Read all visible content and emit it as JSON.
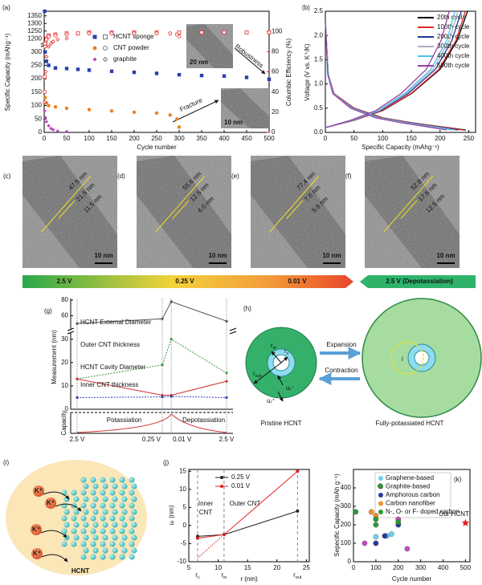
{
  "chart_data": [
    {
      "type": "scatter",
      "panel": "(a)",
      "x_label": "Cycle number",
      "y_label": "Specific Capacity (mAhg⁻¹)",
      "y2_label": "Columbic Efficiency (%)",
      "xlim": [
        0,
        500
      ],
      "xticks": [
        0,
        50,
        100,
        150,
        200,
        250,
        300,
        350,
        400,
        450,
        500
      ],
      "ylim": [
        0,
        1380
      ],
      "ybreak": [
        320,
        1180
      ],
      "yticks": [
        0,
        50,
        100,
        150,
        200,
        250,
        300,
        1200,
        1250,
        1300,
        1350
      ],
      "y2lim": [
        0,
        120
      ],
      "y2ticks": [
        0,
        20,
        40,
        60,
        80,
        100
      ],
      "y2_color": "#e8262a",
      "efficiency_color": "#e8262a",
      "series": [
        {
          "name": "HCNT sponge",
          "color": "#2b3fae",
          "marker": "square",
          "x": [
            1,
            2,
            5,
            10,
            25,
            50,
            75,
            100,
            150,
            200,
            250,
            300,
            350,
            400,
            450,
            500
          ],
          "values": [
            1380,
            300,
            265,
            250,
            240,
            238,
            235,
            232,
            228,
            224,
            220,
            215,
            212,
            210,
            205,
            198
          ],
          "efficiency": [
            55,
            88,
            93,
            96,
            97,
            98,
            98,
            99,
            99,
            99,
            99,
            99,
            99,
            99,
            99,
            99
          ]
        },
        {
          "name": "CNT powder",
          "color": "#f08020",
          "marker": "circle",
          "x": [
            1,
            2,
            5,
            10,
            25,
            50,
            100,
            150,
            200,
            250,
            280,
            295,
            300
          ],
          "values": [
            150,
            130,
            110,
            100,
            95,
            90,
            85,
            80,
            75,
            72,
            65,
            50,
            20
          ],
          "efficiency": [
            40,
            85,
            92,
            95,
            96,
            97,
            98,
            98,
            98,
            98,
            98,
            97,
            95
          ]
        },
        {
          "name": "graphite",
          "color": "#c040c0",
          "marker": "diamond",
          "x": [
            1,
            3,
            5,
            10,
            15,
            20,
            30,
            50
          ],
          "values": [
            80,
            55,
            40,
            25,
            15,
            10,
            5,
            3
          ],
          "efficiency": [
            30,
            60,
            75,
            85,
            88,
            90,
            92,
            93
          ]
        }
      ],
      "annotations": [
        "Robustness",
        "Fracture"
      ],
      "inset_scales": [
        "20 nm",
        "10 nm"
      ]
    },
    {
      "type": "line",
      "panel": "(b)",
      "x_label": "Specific Capacity (mAhg⁻¹)",
      "y_label": "Voltage (V vs. K⁺/K)",
      "xlim": [
        0,
        262
      ],
      "xticks": [
        0,
        50,
        100,
        150,
        200,
        250
      ],
      "ylim": [
        0,
        2.5
      ],
      "yticks": [
        {
          "value": 0,
          "label": "0.0"
        },
        {
          "value": 0.5,
          "label": "0.5"
        },
        {
          "value": 1,
          "label": "1.0"
        },
        {
          "value": 1.5,
          "label": "1.5"
        },
        {
          "value": 2,
          "label": "2.0"
        },
        {
          "value": 2.5,
          "label": "2.5"
        }
      ],
      "series": [
        {
          "name": "20th cycle",
          "color": "#000000",
          "discharge_x": [
            0,
            5,
            15,
            50,
            100,
            150,
            200,
            245
          ],
          "discharge": [
            2.3,
            1.2,
            0.8,
            0.5,
            0.3,
            0.2,
            0.12,
            0.05
          ],
          "charge_x": [
            0,
            50,
            100,
            150,
            200,
            230,
            248
          ],
          "charge": [
            0.1,
            0.25,
            0.45,
            0.8,
            1.3,
            1.9,
            2.5
          ]
        },
        {
          "name": "100th cycle",
          "color": "#e8262a",
          "discharge_x": [
            0,
            5,
            15,
            50,
            99,
            149,
            198,
            240
          ],
          "discharge": [
            2.3,
            1.2,
            0.8,
            0.5,
            0.3,
            0.2,
            0.12,
            0.05
          ],
          "charge_x": [
            0,
            50,
            99,
            149,
            198,
            228,
            244
          ],
          "charge": [
            0.1,
            0.25,
            0.45,
            0.8,
            1.3,
            1.9,
            2.5
          ]
        },
        {
          "name": "200th cycle",
          "color": "#1f3a93",
          "discharge_x": [
            0,
            5,
            14,
            48,
            96,
            144,
            192,
            232
          ],
          "discharge": [
            2.3,
            1.2,
            0.8,
            0.5,
            0.3,
            0.2,
            0.12,
            0.05
          ],
          "charge_x": [
            0,
            48,
            96,
            144,
            192,
            221,
            237
          ],
          "charge": [
            0.1,
            0.25,
            0.45,
            0.8,
            1.3,
            1.9,
            2.5
          ]
        },
        {
          "name": "300th cycle",
          "color": "#a9b0c0",
          "discharge_x": [
            0,
            5,
            14,
            47,
            94,
            141,
            188,
            226
          ],
          "discharge": [
            2.3,
            1.2,
            0.8,
            0.5,
            0.3,
            0.2,
            0.12,
            0.05
          ],
          "charge_x": [
            0,
            47,
            94,
            141,
            188,
            216,
            231
          ],
          "charge": [
            0.1,
            0.25,
            0.45,
            0.8,
            1.3,
            1.9,
            2.5
          ]
        },
        {
          "name": "400th cycle",
          "color": "#4fc3e8",
          "discharge_x": [
            0,
            5,
            14,
            46,
            92,
            138,
            184,
            222
          ],
          "discharge": [
            2.3,
            1.2,
            0.8,
            0.5,
            0.3,
            0.2,
            0.12,
            0.05
          ],
          "charge_x": [
            0,
            46,
            92,
            138,
            184,
            212,
            226
          ],
          "charge": [
            0.1,
            0.25,
            0.45,
            0.8,
            1.3,
            1.9,
            2.5
          ]
        },
        {
          "name": "500th cycle",
          "color": "#9b3fa0",
          "discharge_x": [
            0,
            4,
            13,
            44,
            88,
            132,
            176,
            212
          ],
          "discharge": [
            2.3,
            1.2,
            0.8,
            0.5,
            0.3,
            0.2,
            0.12,
            0.05
          ],
          "charge_x": [
            0,
            44,
            88,
            132,
            176,
            202,
            216
          ],
          "charge": [
            0.1,
            0.25,
            0.45,
            0.8,
            1.3,
            1.9,
            2.5
          ]
        }
      ]
    },
    {
      "type": "line",
      "panel": "(g)",
      "y_label": "Measurement (nm)",
      "categories": [
        "2.5 V",
        "0.25 V",
        "0.01 V",
        "2.5 V"
      ],
      "ylim": [
        0,
        82
      ],
      "ybreak": [
        33,
        45
      ],
      "yticks": [
        0,
        10,
        20,
        30,
        60,
        80
      ],
      "series": [
        {
          "name": "HCNT External Diameter",
          "color": "#555555",
          "style": "solid",
          "values": [
            50,
            56,
            78,
            53
          ]
        },
        {
          "name": "Outer CNT thickness",
          "color": "#3a9a4a",
          "style": "dashed",
          "values": [
            13,
            19,
            30,
            15.5
          ]
        },
        {
          "name": "HCNT Cavity Diameter",
          "color": "#d03030",
          "style": "solid",
          "values": [
            13,
            6,
            6,
            12
          ]
        },
        {
          "name": "Inner CNT thickness",
          "color": "#2b3fae",
          "style": "dashed",
          "values": [
            5,
            5.3,
            5.5,
            5
          ]
        }
      ],
      "capacity_label": "Capacity",
      "phases": [
        "Potassiation",
        "Depotassiation"
      ]
    },
    {
      "type": "line",
      "panel": "(j)",
      "x_label": "r (nm)",
      "y_label": "uᵣ (nm)",
      "xlim": [
        5,
        25.5
      ],
      "xticks": [
        5,
        10,
        15,
        20,
        25
      ],
      "xmarkers": [
        {
          "value": 6.5,
          "label": "rc"
        },
        {
          "value": 11,
          "label": "rin"
        },
        {
          "value": 23.5,
          "label": "rout"
        }
      ],
      "ylim": [
        -10,
        15.5
      ],
      "yticks": [
        -10,
        -5,
        0,
        5,
        10,
        15
      ],
      "series": [
        {
          "name": "0.25 V",
          "color": "#222222",
          "x": [
            6.5,
            11,
            23.5
          ],
          "values": [
            -3,
            -2.5,
            4
          ]
        },
        {
          "name": "0.01 V",
          "color": "#e02020",
          "x": [
            6.5,
            11,
            23.5
          ],
          "values": [
            -3.5,
            -2.5,
            15
          ],
          "extension_x": [
            6.5,
            11
          ],
          "extension": [
            -9,
            -2.5
          ]
        }
      ],
      "region_labels": {
        "inner": [
          "Inner",
          "CNT"
        ],
        "outer": "Outer CNT"
      }
    },
    {
      "type": "scatter",
      "panel": "(k)",
      "x_label": "Cycle number",
      "y_label": "Sepecific Capacity (mAh g⁻¹)",
      "xlim": [
        0,
        520
      ],
      "xticks": [
        0,
        100,
        200,
        300,
        400,
        500
      ],
      "ylim": [
        0,
        500
      ],
      "yticks": [
        0,
        100,
        200,
        300,
        400
      ],
      "series": [
        {
          "name": "Graphene-based",
          "color": "#6fd0f0",
          "marker": "circle",
          "x": [
            100,
            150,
            170
          ],
          "values": [
            135,
            140,
            150
          ]
        },
        {
          "name": "Graphite-based",
          "color": "#c04fc0",
          "marker": "circle",
          "x": [
            50,
            200,
            240
          ],
          "values": [
            100,
            230,
            70
          ]
        },
        {
          "name": "Amphorous carbon",
          "color": "#2a3a9a",
          "marker": "circle",
          "x": [
            100,
            140,
            200
          ],
          "values": [
            100,
            140,
            200
          ]
        },
        {
          "name": "Carbon nanofiber",
          "color": "#f0902a",
          "marker": "circle",
          "x": [
            80,
            100
          ],
          "values": [
            270,
            250
          ]
        },
        {
          "name": "N-, O- or F- doped carbon",
          "color": "#2a9a3a",
          "marker": "circle",
          "x": [
            10,
            120,
            100,
            100,
            200
          ],
          "values": [
            270,
            410,
            230,
            200,
            215
          ]
        }
      ],
      "highlight": {
        "name": "Our HCNT",
        "color": "#e02020",
        "marker": "star",
        "x": [
          500
        ],
        "values": [
          210
        ]
      }
    }
  ],
  "tem_panels": [
    {
      "label": "(c)",
      "scale": "10 nm",
      "measurements": [
        "47.5 nm",
        "21.5 nm",
        "11.5 nm"
      ]
    },
    {
      "label": "(d)",
      "scale": "10 nm",
      "measurements": [
        "55.6 nm",
        "12.5 nm",
        "6.0 nm"
      ]
    },
    {
      "label": "(e)",
      "scale": "10 nm",
      "measurements": [
        "77.4 nm",
        "7.6 nm",
        "5.8 nm"
      ]
    },
    {
      "label": "(f)",
      "scale": "10 nm",
      "measurements": [
        "52.8 nm",
        "17.6 nm",
        "12.5 nm"
      ]
    }
  ],
  "voltage_bar": {
    "labels": [
      "2.5 V",
      "0.25 V",
      "0.01 V"
    ],
    "depotassiation": "2.5 V (Depotassiation)"
  },
  "diagram_h": {
    "panel": "(h)",
    "expansion": "Expansion",
    "contraction": "Contraction",
    "pristine": "Pristine HCNT",
    "potassiated": "Fully-potassiated HCNT",
    "r_in": "rin",
    "r_c": "rc",
    "r_out": "rout",
    "u_minus": "uᵣ⁻",
    "u_plus": "uᵣ⁺",
    "inset": "i"
  },
  "diagram_i": {
    "panel": "(i)",
    "ions": [
      "K⁺",
      "K⁺",
      "K⁺",
      "K⁺"
    ],
    "label": "HCNT"
  }
}
